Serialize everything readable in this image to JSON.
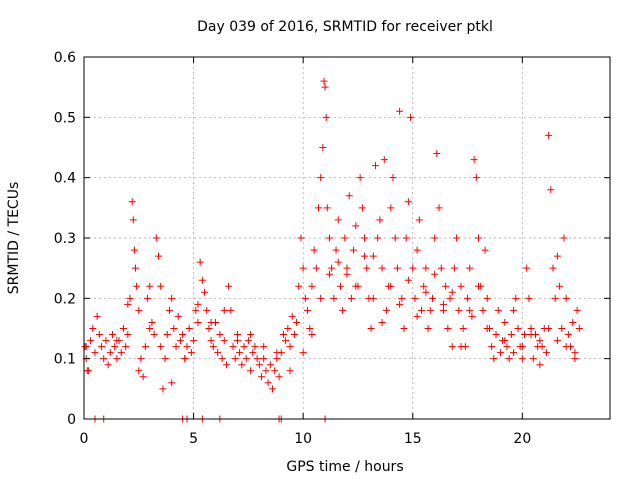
{
  "chart_data": {
    "type": "scatter",
    "title": "Day 039 of 2016, SRMTID for receiver ptkl",
    "xlabel": "GPS time / hours",
    "ylabel": "SRMTID / TECUs",
    "xlim": [
      0,
      24
    ],
    "ylim": [
      0,
      0.6
    ],
    "xticks": [
      0,
      5,
      10,
      15,
      20
    ],
    "yticks": [
      0,
      0.1,
      0.2,
      0.3,
      0.4,
      0.5,
      0.6
    ],
    "xtick_labels": [
      "0",
      "5",
      "10",
      "15",
      "20"
    ],
    "ytick_labels": [
      "0",
      "0.1",
      "0.2",
      "0.3",
      "0.4",
      "0.5",
      "0.6"
    ],
    "grid": true,
    "marker": "+",
    "series": [
      {
        "name": "SRMTID",
        "color": "#ff0000",
        "x": [
          0.05,
          0.1,
          0.2,
          0.3,
          0.4,
          0.5,
          0.6,
          0.7,
          0.8,
          0.9,
          1.0,
          1.1,
          1.2,
          1.3,
          1.4,
          1.5,
          1.6,
          1.7,
          1.8,
          1.9,
          2.0,
          2.1,
          2.2,
          2.25,
          2.3,
          2.35,
          2.4,
          2.5,
          2.6,
          2.7,
          2.8,
          2.9,
          3.0,
          3.1,
          3.2,
          3.3,
          3.4,
          3.5,
          3.6,
          3.7,
          3.8,
          3.9,
          4.0,
          4.1,
          4.2,
          4.3,
          4.4,
          4.5,
          4.6,
          4.7,
          4.8,
          4.9,
          5.0,
          5.1,
          5.2,
          5.3,
          5.4,
          5.5,
          5.6,
          5.7,
          5.8,
          5.9,
          6.0,
          6.1,
          6.2,
          6.3,
          6.4,
          6.5,
          6.6,
          6.7,
          6.8,
          6.9,
          7.0,
          7.1,
          7.2,
          7.3,
          7.4,
          7.5,
          7.6,
          7.7,
          7.8,
          7.9,
          8.0,
          8.1,
          8.2,
          8.3,
          8.4,
          8.5,
          8.6,
          8.7,
          8.8,
          8.9,
          9.0,
          9.1,
          9.2,
          9.3,
          9.4,
          9.5,
          9.6,
          9.7,
          9.8,
          9.9,
          10.0,
          10.1,
          10.2,
          10.3,
          10.4,
          10.5,
          10.6,
          10.7,
          10.8,
          10.9,
          10.95,
          11.0,
          11.05,
          11.1,
          11.2,
          11.3,
          11.4,
          11.5,
          11.6,
          11.7,
          11.8,
          11.9,
          12.0,
          12.1,
          12.2,
          12.3,
          12.4,
          12.5,
          12.6,
          12.7,
          12.8,
          12.9,
          13.0,
          13.1,
          13.2,
          13.3,
          13.4,
          13.5,
          13.6,
          13.7,
          13.8,
          13.9,
          14.0,
          14.1,
          14.2,
          14.3,
          14.4,
          14.5,
          14.6,
          14.7,
          14.8,
          14.9,
          15.0,
          15.1,
          15.2,
          15.3,
          15.4,
          15.5,
          15.6,
          15.7,
          15.8,
          15.9,
          16.0,
          16.1,
          16.2,
          16.3,
          16.4,
          16.5,
          16.6,
          16.7,
          16.8,
          16.9,
          17.0,
          17.1,
          17.2,
          17.3,
          17.4,
          17.5,
          17.6,
          17.7,
          17.8,
          17.9,
          18.0,
          18.1,
          18.2,
          18.3,
          18.4,
          18.5,
          18.6,
          18.7,
          18.8,
          18.9,
          19.0,
          19.1,
          19.2,
          19.3,
          19.4,
          19.5,
          19.6,
          19.7,
          19.8,
          19.9,
          20.0,
          20.1,
          20.2,
          20.3,
          20.4,
          20.5,
          20.6,
          20.7,
          20.8,
          20.9,
          21.0,
          21.1,
          21.2,
          21.3,
          21.4,
          21.5,
          21.6,
          21.7,
          21.8,
          21.9,
          22.0,
          22.1,
          22.2,
          22.3,
          22.4,
          22.5,
          22.6,
          0.1,
          0.15,
          4.5,
          4.7,
          5.4,
          6.2,
          8.9,
          9.0,
          11.0,
          0.5,
          0.9,
          1.5,
          2.0,
          2.5,
          3.0,
          3.5,
          4.0,
          4.6,
          5.2,
          5.8,
          6.4,
          7.0,
          7.6,
          8.2,
          8.8,
          9.4,
          10.0,
          10.4,
          10.8,
          11.2,
          11.6,
          12.0,
          12.4,
          12.8,
          13.2,
          13.6,
          14.0,
          14.4,
          14.8,
          15.2,
          15.6,
          16.0,
          16.4,
          16.8,
          17.2,
          17.6,
          18.0,
          18.4,
          18.8,
          19.2,
          19.6,
          20.0,
          20.4,
          20.8,
          21.2,
          21.6,
          22.0,
          22.4
        ],
        "y": [
          0.12,
          0.1,
          0.08,
          0.13,
          0.15,
          0.11,
          0.17,
          0.14,
          0.12,
          0.1,
          0.13,
          0.09,
          0.11,
          0.14,
          0.12,
          0.1,
          0.13,
          0.11,
          0.15,
          0.12,
          0.14,
          0.2,
          0.36,
          0.33,
          0.28,
          0.25,
          0.22,
          0.18,
          0.1,
          0.07,
          0.12,
          0.2,
          0.22,
          0.16,
          0.14,
          0.3,
          0.27,
          0.12,
          0.05,
          0.1,
          0.14,
          0.18,
          0.2,
          0.15,
          0.12,
          0.17,
          0.13,
          0.14,
          0.1,
          0.12,
          0.15,
          0.11,
          0.13,
          0.18,
          0.16,
          0.26,
          0.23,
          0.21,
          0.18,
          0.15,
          0.13,
          0.12,
          0.16,
          0.11,
          0.14,
          0.1,
          0.13,
          0.09,
          0.22,
          0.18,
          0.12,
          0.1,
          0.14,
          0.11,
          0.09,
          0.12,
          0.1,
          0.13,
          0.08,
          0.11,
          0.12,
          0.1,
          0.09,
          0.07,
          0.1,
          0.08,
          0.06,
          0.09,
          0.05,
          0.08,
          0.1,
          0.07,
          0.11,
          0.14,
          0.13,
          0.15,
          0.12,
          0.17,
          0.14,
          0.16,
          0.22,
          0.3,
          0.25,
          0.2,
          0.18,
          0.15,
          0.22,
          0.28,
          0.25,
          0.35,
          0.4,
          0.45,
          0.56,
          0.55,
          0.5,
          0.35,
          0.3,
          0.25,
          0.2,
          0.28,
          0.33,
          0.22,
          0.18,
          0.3,
          0.25,
          0.37,
          0.2,
          0.28,
          0.32,
          0.22,
          0.4,
          0.35,
          0.3,
          0.25,
          0.2,
          0.15,
          0.27,
          0.42,
          0.3,
          0.33,
          0.25,
          0.43,
          0.18,
          0.22,
          0.35,
          0.4,
          0.3,
          0.25,
          0.51,
          0.2,
          0.15,
          0.3,
          0.36,
          0.5,
          0.25,
          0.2,
          0.28,
          0.33,
          0.18,
          0.22,
          0.25,
          0.15,
          0.18,
          0.2,
          0.3,
          0.44,
          0.35,
          0.25,
          0.18,
          0.22,
          0.15,
          0.2,
          0.12,
          0.25,
          0.3,
          0.18,
          0.22,
          0.15,
          0.12,
          0.2,
          0.25,
          0.17,
          0.43,
          0.4,
          0.3,
          0.22,
          0.18,
          0.28,
          0.2,
          0.15,
          0.12,
          0.1,
          0.14,
          0.18,
          0.11,
          0.13,
          0.16,
          0.12,
          0.1,
          0.14,
          0.18,
          0.2,
          0.15,
          0.12,
          0.1,
          0.14,
          0.25,
          0.2,
          0.15,
          0.1,
          0.14,
          0.12,
          0.09,
          0.12,
          0.15,
          0.11,
          0.47,
          0.38,
          0.25,
          0.2,
          0.27,
          0.22,
          0.15,
          0.3,
          0.2,
          0.14,
          0.12,
          0.16,
          0.1,
          0.18,
          0.15,
          0.12,
          0.08,
          0.0,
          0.0,
          0.0,
          0.0,
          0.0,
          0.0,
          0.0,
          0.0,
          0.0,
          0.13,
          0.19,
          0.08,
          0.15,
          0.22,
          0.06,
          0.1,
          0.19,
          0.16,
          0.18,
          0.13,
          0.14,
          0.12,
          0.11,
          0.08,
          0.11,
          0.14,
          0.2,
          0.24,
          0.26,
          0.24,
          0.22,
          0.27,
          0.2,
          0.16,
          0.22,
          0.19,
          0.23,
          0.17,
          0.21,
          0.24,
          0.19,
          0.21,
          0.12,
          0.18,
          0.22,
          0.15,
          0.14,
          0.13,
          0.11,
          0.12,
          0.14,
          0.13,
          0.15,
          0.13,
          0.12,
          0.11
        ]
      }
    ]
  }
}
